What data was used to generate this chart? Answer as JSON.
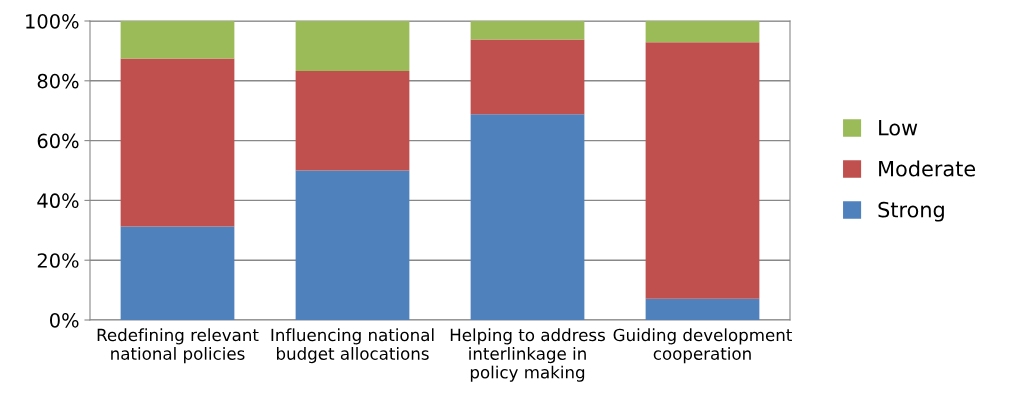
{
  "chart_data": {
    "type": "bar",
    "stacked": true,
    "categories": [
      "Redefining relevant national policies",
      "Influencing national budget allocations",
      "Helping to address interlinkage in policy making",
      "Guiding development cooperation"
    ],
    "series": [
      {
        "name": "Strong",
        "color": "#4f81bd",
        "values": [
          31.3,
          50,
          68.8,
          7.1
        ]
      },
      {
        "name": "Moderate",
        "color": "#c0504d",
        "values": [
          56.2,
          33.3,
          25,
          85.8
        ]
      },
      {
        "name": "Low",
        "color": "#9bbb59",
        "values": [
          12.5,
          16.7,
          6.2,
          7.1
        ]
      }
    ],
    "ylim": [
      0,
      100
    ],
    "yticks": [
      {
        "value": 0,
        "label": "0%"
      },
      {
        "value": 20,
        "label": "20%"
      },
      {
        "value": 40,
        "label": "40%"
      },
      {
        "value": 60,
        "label": "60%"
      },
      {
        "value": 80,
        "label": "80%"
      },
      {
        "value": 100,
        "label": "100%"
      }
    ],
    "grid": "y",
    "legend": "right"
  }
}
